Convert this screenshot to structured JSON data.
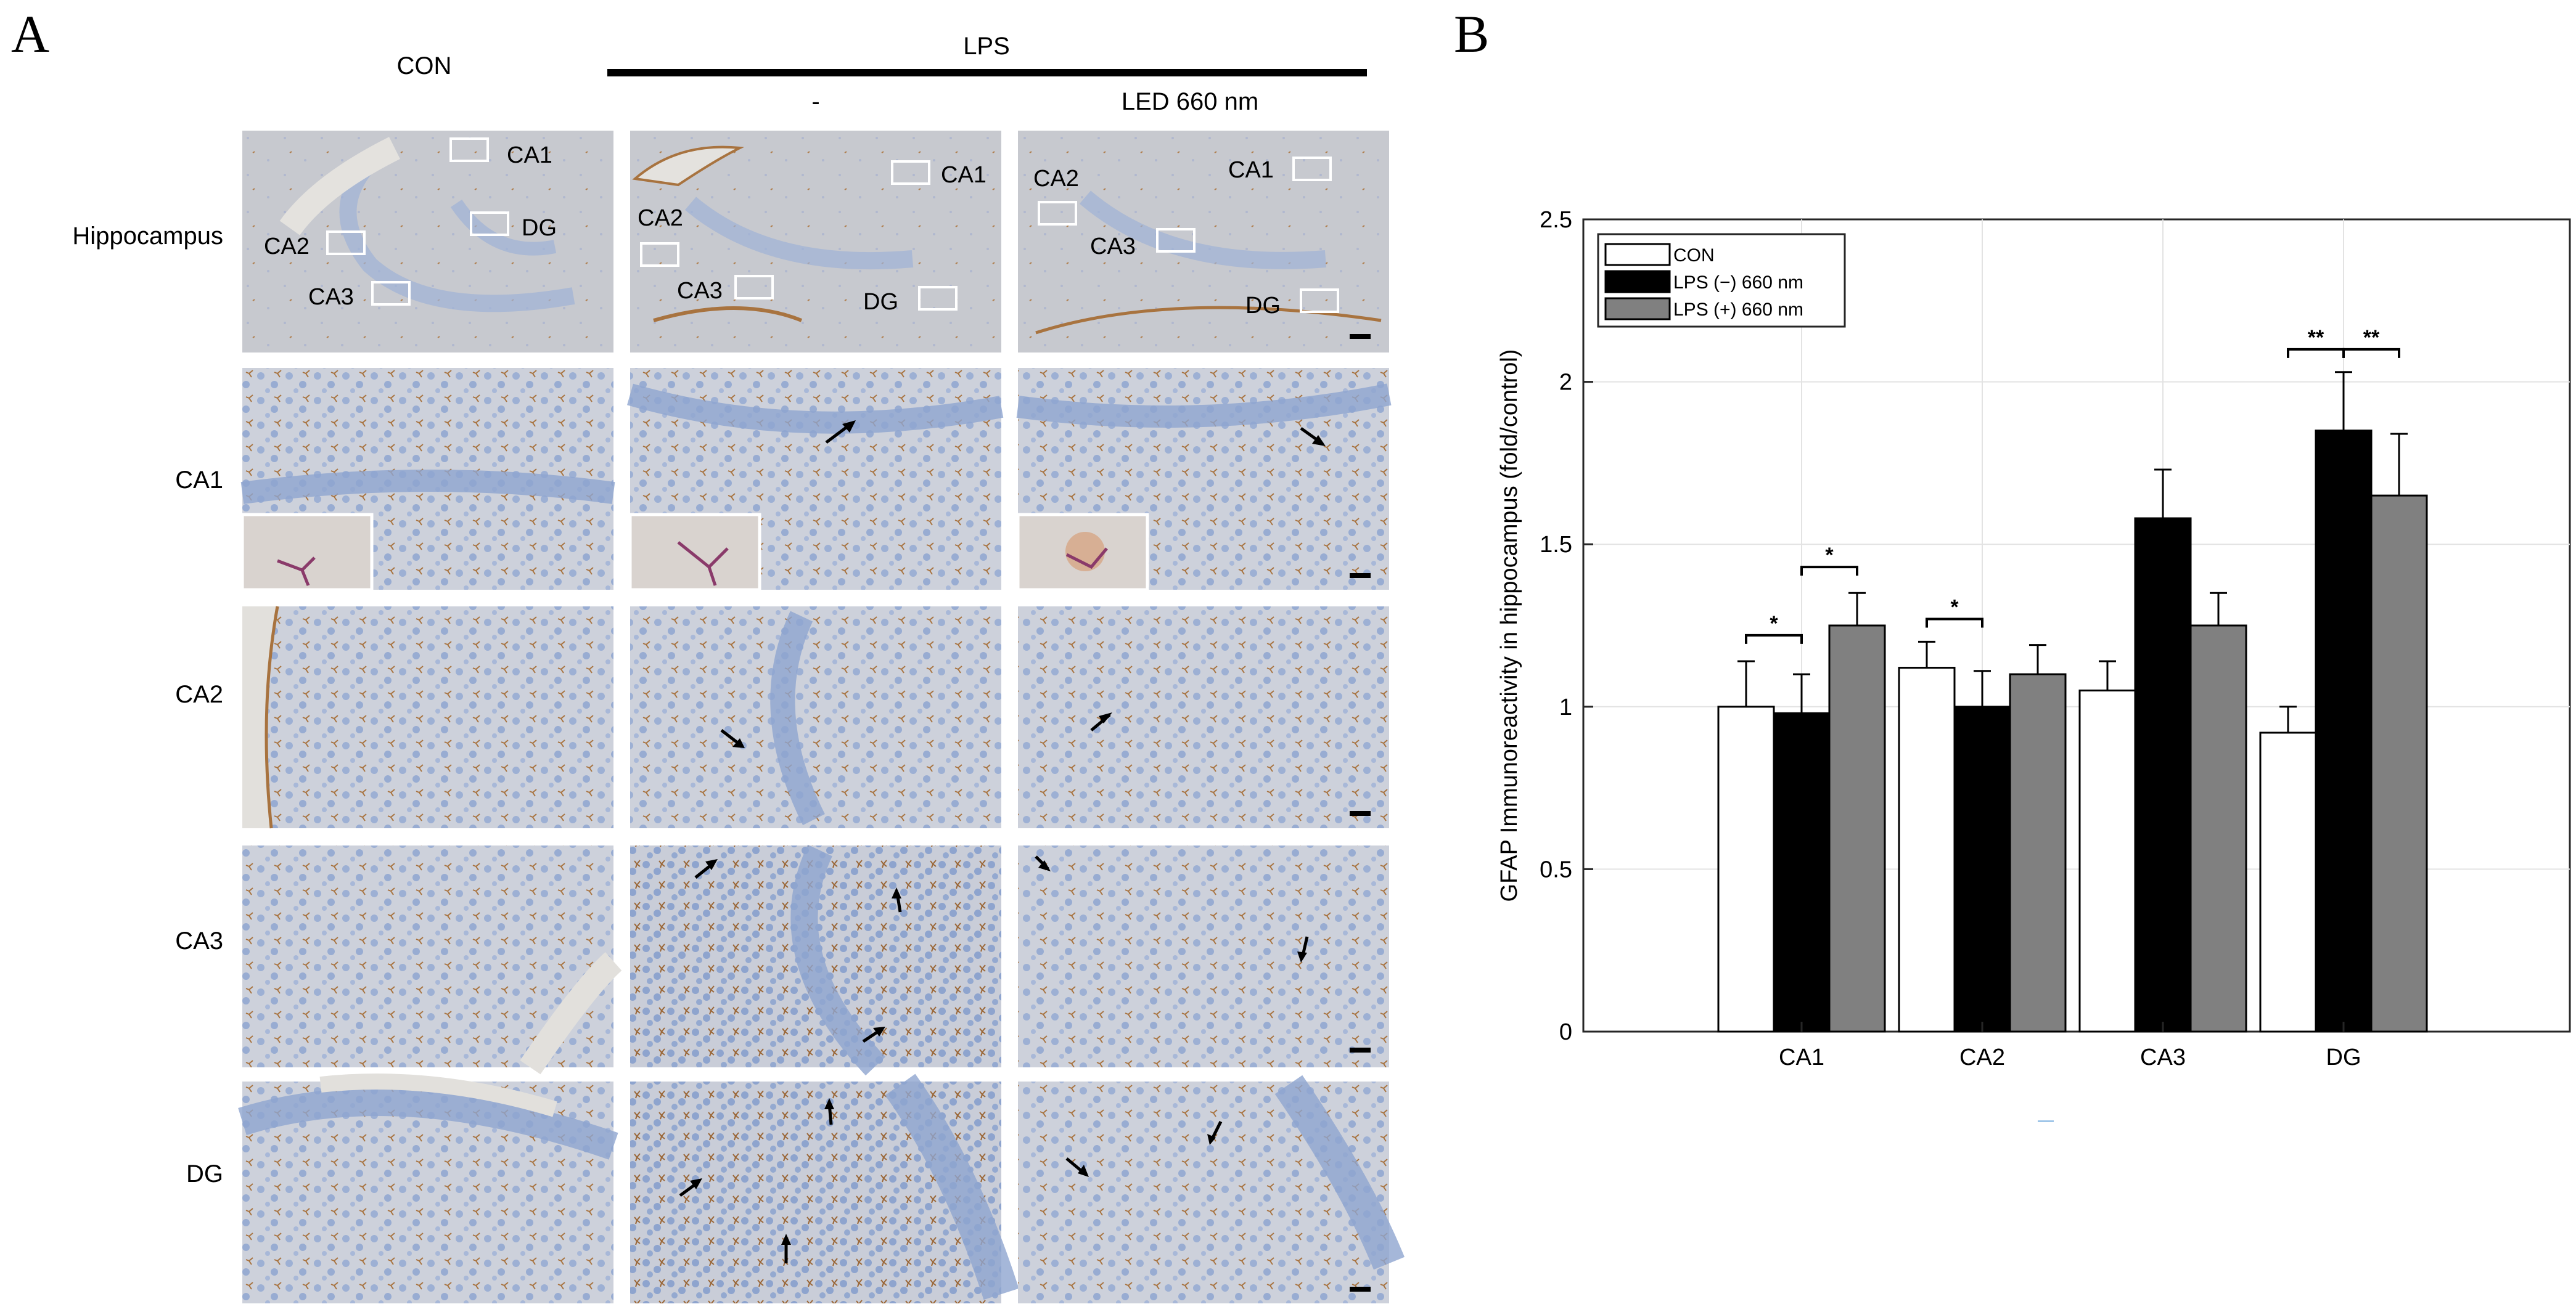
{
  "panel_a": {
    "letter": "A",
    "header_con": "CON",
    "header_lps": "LPS",
    "header_minus": "-",
    "header_led": "LED 660 nm",
    "rows": [
      "Hippocampus",
      "CA1",
      "CA2",
      "CA3",
      "DG"
    ],
    "micrograph_labels": {
      "con": [
        "CA1",
        "DG",
        "CA2",
        "CA3"
      ],
      "lps": [
        "CA1",
        "CA2",
        "CA3",
        "DG"
      ],
      "led": [
        "CA2",
        "CA1",
        "CA3",
        "DG"
      ]
    },
    "colors": {
      "tissue": "#c6cbd9",
      "stain_blue": "#8fa5cf",
      "stain_brown": "#a8733f",
      "background_light": "#e2e0dc"
    }
  },
  "panel_b": {
    "letter": "B"
  },
  "chart_data": {
    "type": "bar",
    "title": "",
    "xlabel": "",
    "ylabel": "GFAP Immunoreactivity in hippocampus (fold/control)",
    "categories": [
      "CA1",
      "CA2",
      "CA3",
      "DG"
    ],
    "ylim": [
      0,
      2.5
    ],
    "yticks": [
      "0",
      "0.5",
      "1",
      "1.5",
      "2",
      "2.5"
    ],
    "grid": true,
    "legend_position": "top-left",
    "series": [
      {
        "name": "CON",
        "color": "#ffffff",
        "values": [
          1.0,
          1.12,
          1.05,
          0.92
        ],
        "errors": [
          0.14,
          0.08,
          0.09,
          0.08
        ]
      },
      {
        "name": "LPS (−) 660 nm",
        "color": "#000000",
        "values": [
          0.98,
          1.0,
          1.58,
          1.85
        ],
        "errors": [
          0.12,
          0.11,
          0.15,
          0.18
        ]
      },
      {
        "name": "LPS (+) 660 nm",
        "color": "#808080",
        "values": [
          1.25,
          1.1,
          1.25,
          1.65
        ],
        "errors": [
          0.1,
          0.09,
          0.1,
          0.19
        ]
      }
    ],
    "significance": [
      {
        "category": "CA1",
        "between": [
          0,
          1
        ],
        "label": "*",
        "y": 1.22
      },
      {
        "category": "CA1",
        "between": [
          1,
          2
        ],
        "label": "*",
        "y": 1.43
      },
      {
        "category": "CA2",
        "between": [
          0,
          1
        ],
        "label": "*",
        "y": 1.27
      },
      {
        "category": "DG",
        "between": [
          0,
          1
        ],
        "label": "**",
        "y": 2.1
      },
      {
        "category": "DG",
        "between": [
          1,
          2
        ],
        "label": "**",
        "y": 2.1
      }
    ]
  }
}
